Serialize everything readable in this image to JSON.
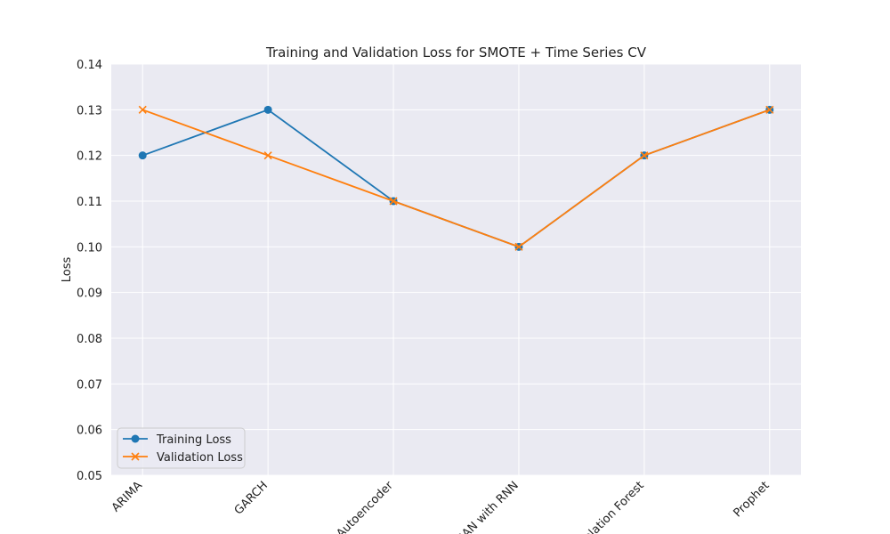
{
  "chart_data": {
    "type": "line",
    "title": "Training and Validation Loss for SMOTE + Time Series CV",
    "xlabel": "",
    "ylabel": "Loss",
    "categories": [
      "ARIMA",
      "GARCH",
      "Autoencoder",
      "GAN with RNN",
      "Isolation Forest",
      "Prophet"
    ],
    "ylim": [
      0.05,
      0.14
    ],
    "yticks": [
      "0.05",
      "0.06",
      "0.07",
      "0.08",
      "0.09",
      "0.10",
      "0.11",
      "0.12",
      "0.13",
      "0.14"
    ],
    "grid": true,
    "legend_position": "lower-left",
    "series": [
      {
        "name": "Training Loss",
        "values": [
          0.12,
          0.13,
          0.11,
          0.1,
          0.12,
          0.13
        ],
        "marker": "circle",
        "color": "#1f77b4"
      },
      {
        "name": "Validation Loss",
        "values": [
          0.13,
          0.12,
          0.11,
          0.1,
          0.12,
          0.13
        ],
        "marker": "x",
        "color": "#ff7f0e"
      }
    ]
  },
  "colors": {
    "plot_background": "#eaeaf2",
    "grid": "#ffffff"
  }
}
